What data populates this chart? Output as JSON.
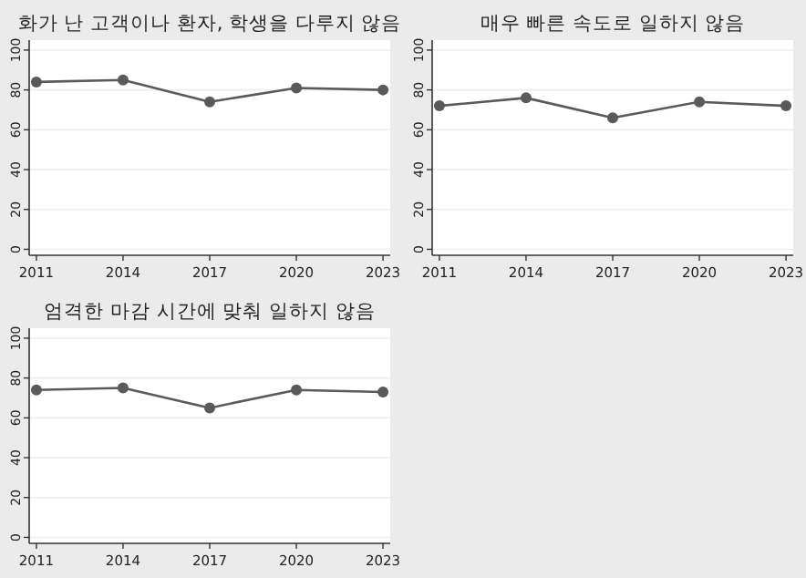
{
  "chart_data": [
    {
      "type": "line",
      "title": "화가 난 고객이나 환자, 학생을 다루지 않음",
      "x": [
        2011,
        2014,
        2017,
        2020,
        2023
      ],
      "series": [
        {
          "color": "#5a5a5a",
          "values": [
            84,
            85,
            74,
            81,
            80
          ]
        }
      ],
      "xlim": [
        2010.75,
        2023.25
      ],
      "xticks": [
        2011,
        2014,
        2017,
        2020,
        2023
      ],
      "ylim": [
        -3,
        105
      ],
      "yticks": [
        0,
        20,
        40,
        60,
        80,
        100
      ],
      "grid": "y",
      "marker": "circle",
      "line_style": "solid"
    },
    {
      "type": "line",
      "title": "매우 빠른 속도로 일하지 않음",
      "x": [
        2011,
        2014,
        2017,
        2020,
        2023
      ],
      "series": [
        {
          "color": "#5a5a5a",
          "values": [
            72,
            76,
            66,
            74,
            72
          ]
        }
      ],
      "xlim": [
        2010.75,
        2023.25
      ],
      "xticks": [
        2011,
        2014,
        2017,
        2020,
        2023
      ],
      "ylim": [
        -3,
        105
      ],
      "yticks": [
        0,
        20,
        40,
        60,
        80,
        100
      ],
      "grid": "y",
      "marker": "circle",
      "line_style": "solid"
    },
    {
      "type": "line",
      "title": "엄격한 마감 시간에 맞춰 일하지 않음",
      "x": [
        2011,
        2014,
        2017,
        2020,
        2023
      ],
      "series": [
        {
          "color": "#5a5a5a",
          "values": [
            74,
            75,
            65,
            74,
            73
          ]
        }
      ],
      "xlim": [
        2010.75,
        2023.25
      ],
      "xticks": [
        2011,
        2014,
        2017,
        2020,
        2023
      ],
      "ylim": [
        -3,
        105
      ],
      "yticks": [
        0,
        20,
        40,
        60,
        80,
        100
      ],
      "grid": "y",
      "marker": "circle",
      "line_style": "solid"
    }
  ]
}
